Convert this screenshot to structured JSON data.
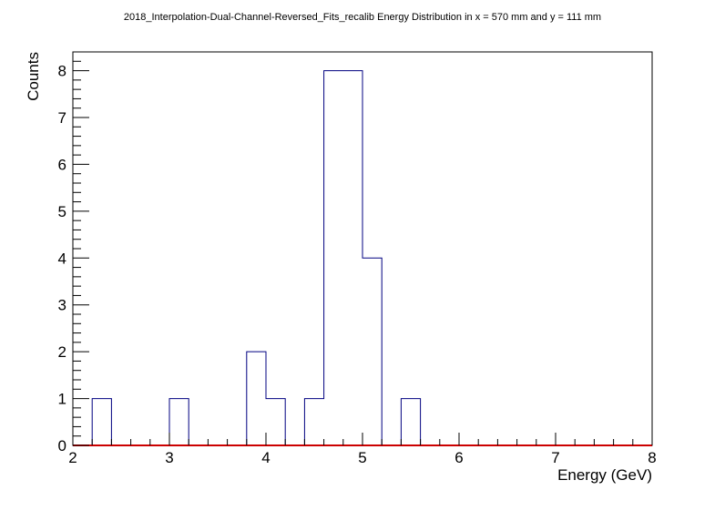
{
  "chart_data": {
    "type": "bar",
    "title": "2018_Interpolation-Dual-Channel-Reversed_Fits_recalib Energy Distribution in x = 570 mm and y = 111 mm",
    "xlabel": "Energy (GeV)",
    "ylabel": "Counts",
    "xlim": [
      2,
      8
    ],
    "ylim": [
      0,
      8.4
    ],
    "x_ticks": [
      "2",
      "3",
      "4",
      "5",
      "6",
      "7",
      "8"
    ],
    "y_ticks": [
      "0",
      "1",
      "2",
      "3",
      "4",
      "5",
      "6",
      "7",
      "8"
    ],
    "bin_width": 0.2,
    "bins": [
      {
        "x": 2.2,
        "count": 1
      },
      {
        "x": 3.0,
        "count": 1
      },
      {
        "x": 3.8,
        "count": 2
      },
      {
        "x": 4.0,
        "count": 1
      },
      {
        "x": 4.4,
        "count": 1
      },
      {
        "x": 4.6,
        "count": 8
      },
      {
        "x": 4.8,
        "count": 8
      },
      {
        "x": 5.0,
        "count": 4
      },
      {
        "x": 5.4,
        "count": 1
      }
    ],
    "grid": false,
    "histogram_color": "#000080",
    "fit_color": "#cc0000"
  }
}
